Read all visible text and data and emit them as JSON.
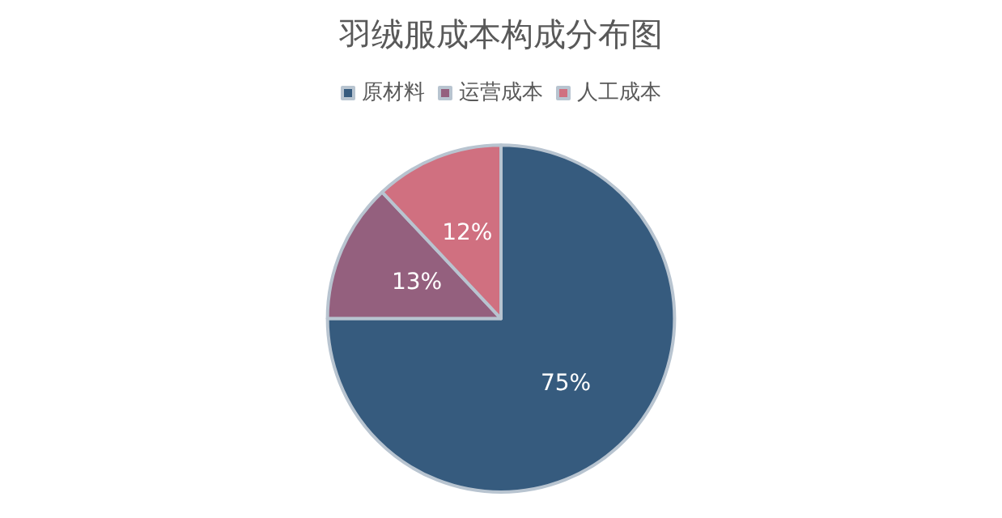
{
  "chart_data": {
    "type": "pie",
    "title": "羽绒服成本构成分布图",
    "categories": [
      "原材料",
      "运营成本",
      "人工成本"
    ],
    "values": [
      75,
      13,
      12
    ],
    "value_labels": [
      "75%",
      "13%",
      "12%"
    ],
    "colors": [
      "#365b7e",
      "#94607e",
      "#d07080"
    ],
    "legend": "top"
  }
}
